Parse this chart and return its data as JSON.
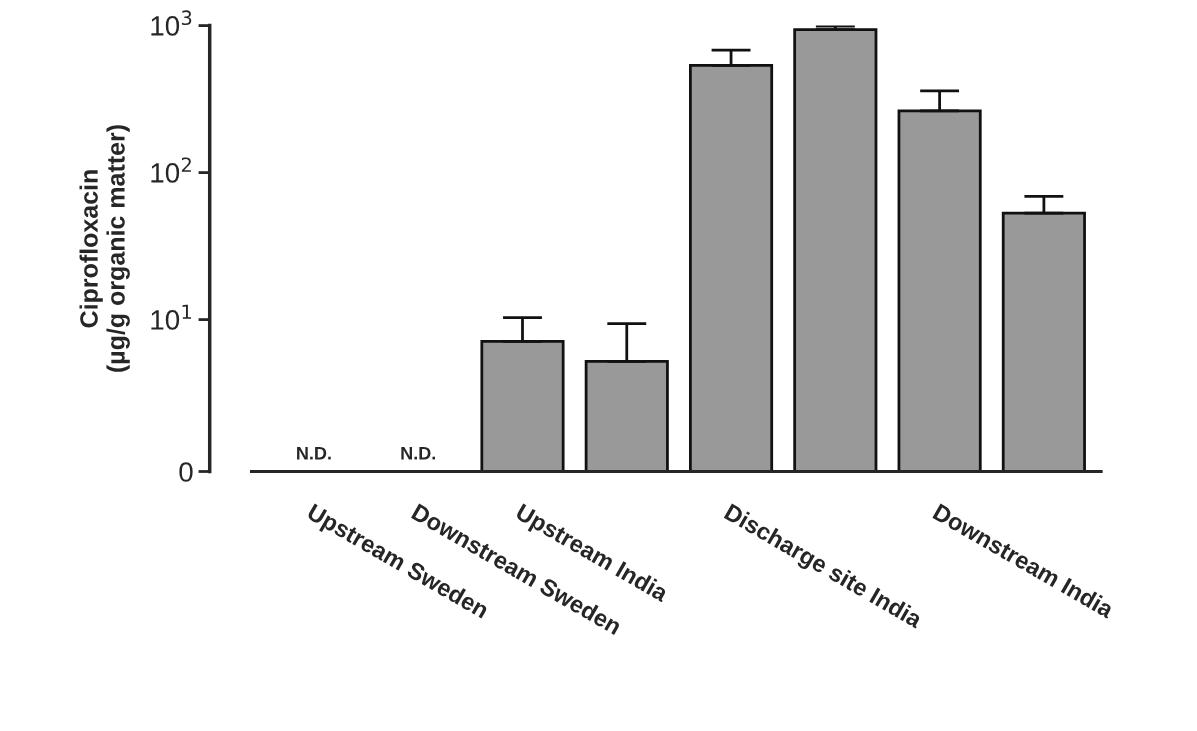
{
  "chart_data": {
    "type": "bar",
    "categories": [
      "Upstream Sweden",
      "Downstream Sweden",
      "Upstream India",
      null,
      "Discharge site India",
      null,
      "Downstream India",
      null
    ],
    "values": [
      null,
      null,
      7.1,
      5.2,
      537,
      940,
      263,
      53
    ],
    "errors": [
      null,
      null,
      [
        7.1,
        10.3
      ],
      [
        5.2,
        9.4
      ],
      [
        537,
        680
      ],
      [
        940,
        990
      ],
      [
        263,
        360
      ],
      [
        53,
        69
      ]
    ],
    "value_labels": [
      "N.D.",
      "N.D.",
      null,
      null,
      null,
      null,
      null,
      null
    ],
    "color": "#999999",
    "ylabel": "Ciprofloxacin\n(µg/g organic matter)",
    "log": true,
    "ylim": [
      0,
      1000
    ],
    "yticks": [
      0,
      {
        "value": 10,
        "label": "10$^{1}$"
      },
      {
        "value": 100,
        "label": "10$^{2}$"
      },
      {
        "value": 1000,
        "label": "10$^{3}$"
      }
    ],
    "grid": false
  }
}
